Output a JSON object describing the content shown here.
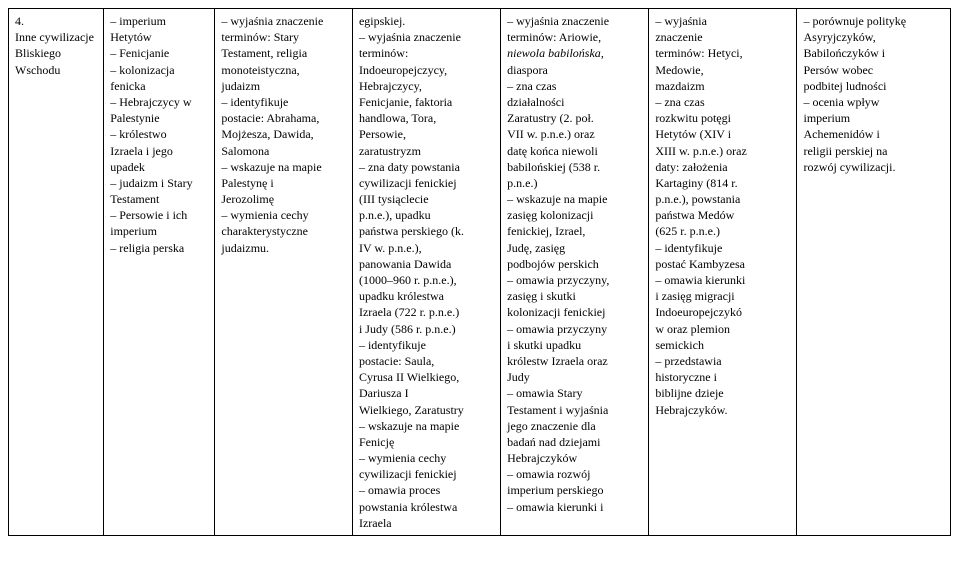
{
  "table": {
    "row": {
      "number": "4.",
      "title_line1": "Inne cywilizacje",
      "title_line2": "Bliskiego",
      "title_line3": "Wschodu",
      "col1": [
        "– imperium",
        "Hetytów",
        "– Fenicjanie",
        "– kolonizacja",
        "fenicka",
        "– Hebrajczycy w",
        "Palestynie",
        "– królestwo",
        "Izraela i jego",
        "upadek",
        "– judaizm i Stary",
        "Testament",
        "– Persowie i ich",
        "imperium",
        "– religia perska"
      ],
      "col2": [
        "– wyjaśnia znaczenie",
        "terminów: Stary",
        "Testament, religia",
        "monoteistyczna,",
        "judaizm",
        "– identyfikuje",
        "postacie: Abrahama,",
        "Mojżesza, Dawida,",
        "Salomona",
        "– wskazuje na mapie",
        "Palestynę i",
        "Jerozolimę",
        "– wymienia cechy",
        "charakterystyczne",
        "judaizmu."
      ],
      "col3": [
        "egipskiej.",
        "– wyjaśnia znaczenie",
        "terminów:",
        "Indoeuropejczycy,",
        "Hebrajczycy,",
        "Fenicjanie, faktoria",
        "handlowa, Tora,",
        "Persowie,",
        "zaratustryzm",
        "– zna daty powstania",
        "cywilizacji fenickiej",
        "(III tysiąclecie",
        "p.n.e.), upadku",
        "państwa perskiego (k.",
        "IV w. p.n.e.),",
        "panowania Dawida",
        "(1000–960 r. p.n.e.),",
        "upadku królestwa",
        "Izraela  (722 r. p.n.e.)",
        "i Judy (586 r. p.n.e.)",
        "– identyfikuje",
        "postacie: Saula,",
        "Cyrusa II Wielkiego,",
        "Dariusza I",
        "Wielkiego, Zaratustry",
        "– wskazuje na mapie",
        "Fenicję",
        "– wymienia cechy",
        "cywilizacji fenickiej",
        "– omawia proces",
        "powstania królestwa",
        "Izraela"
      ],
      "col4_pre_italic": [
        "– wyjaśnia znaczenie",
        "terminów: Ariowie,"
      ],
      "col4_italic": "niewola babilońska",
      "col4_post_italic_inline": ",",
      "col4_post": [
        "diaspora",
        "– zna czas",
        "działalności",
        "Zaratustry (2. poł.",
        "VII w. p.n.e.) oraz",
        "datę końca niewoli",
        "babilońskiej (538 r.",
        "p.n.e.)",
        "– wskazuje na mapie",
        "zasięg kolonizacji",
        "fenickiej, Izrael,",
        "Judę, zasięg",
        "podbojów perskich",
        "– omawia przyczyny,",
        "zasięg i skutki",
        "kolonizacji fenickiej",
        "– omawia przyczyny",
        "i skutki upadku",
        "królestw Izraela oraz",
        "Judy",
        "– omawia Stary",
        "Testament i wyjaśnia",
        "jego znaczenie dla",
        "badań nad dziejami",
        "Hebrajczyków",
        "– omawia rozwój",
        "imperium perskiego",
        "– omawia kierunki i"
      ],
      "col5": [
        "– wyjaśnia",
        "znaczenie",
        "terminów: Hetyci,",
        "Medowie,",
        "mazdaizm",
        "– zna czas",
        "rozkwitu potęgi",
        "Hetytów (XIV i",
        "XIII w. p.n.e.) oraz",
        "daty: założenia",
        "Kartaginy (814 r.",
        "p.n.e.), powstania",
        "państwa Medów",
        "(625 r. p.n.e.)",
        "– identyfikuje",
        "postać Kambyzesa",
        "– omawia kierunki",
        "i zasięg migracji",
        "Indoeuropejczykó",
        "w oraz plemion",
        "semickich",
        "– przedstawia",
        "historyczne i",
        "biblijne dzieje",
        "Hebrajczyków."
      ],
      "col6": [
        "– porównuje politykę",
        "Asyryjczyków,",
        "Babilończyków i",
        "Persów wobec",
        "podbitej ludności",
        "– ocenia wpływ",
        "imperium",
        "Achemenidów i",
        "religii perskiej na",
        "rozwój cywilizacji."
      ]
    }
  }
}
